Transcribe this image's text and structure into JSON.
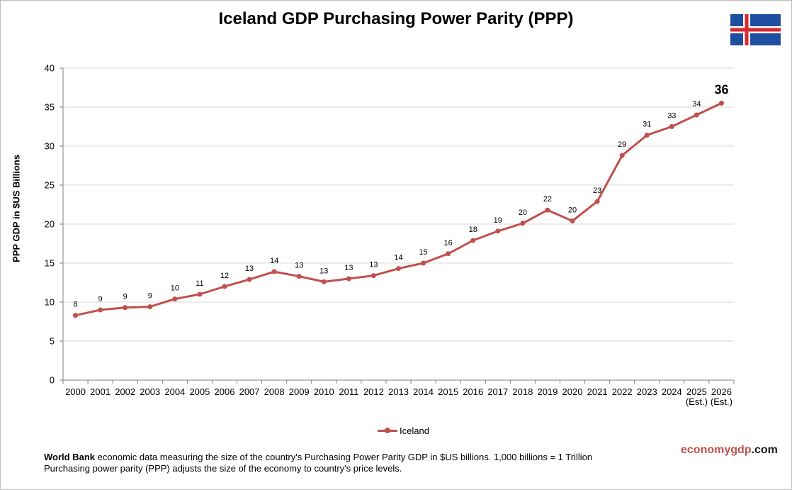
{
  "chart_data": {
    "type": "line",
    "title": "Iceland GDP Purchasing Power Parity (PPP)",
    "ylabel": "PPP GDP in $US Billions",
    "ylim": [
      0,
      40
    ],
    "yticks": [
      0,
      5,
      10,
      15,
      20,
      25,
      30,
      35,
      40
    ],
    "grid": true,
    "legend_position": "bottom",
    "categories": [
      [
        "2000"
      ],
      [
        "2001"
      ],
      [
        "2002"
      ],
      [
        "2003"
      ],
      [
        "2004"
      ],
      [
        "2005"
      ],
      [
        "2006"
      ],
      [
        "2007"
      ],
      [
        "2008"
      ],
      [
        "2009"
      ],
      [
        "2010"
      ],
      [
        "2011"
      ],
      [
        "2012"
      ],
      [
        "2013"
      ],
      [
        "2014"
      ],
      [
        "2015"
      ],
      [
        "2016"
      ],
      [
        "2017"
      ],
      [
        "2018"
      ],
      [
        "2019"
      ],
      [
        "2020"
      ],
      [
        "2021"
      ],
      [
        "2022"
      ],
      [
        "2023"
      ],
      [
        "2024"
      ],
      [
        "2025",
        "(Est.)"
      ],
      [
        "2026",
        "(Est.)"
      ]
    ],
    "series": [
      {
        "name": "Iceland",
        "color": "#c0504d",
        "values": [
          8.3,
          9.0,
          9.3,
          9.4,
          10.4,
          11.0,
          12.0,
          12.9,
          13.9,
          13.3,
          12.6,
          13.0,
          13.4,
          14.3,
          15.0,
          16.2,
          17.9,
          19.1,
          20.1,
          21.8,
          20.4,
          22.9,
          28.8,
          31.4,
          32.5,
          34.0,
          35.5
        ],
        "labels": [
          "8",
          "9",
          "9",
          "9",
          "10",
          "11",
          "12",
          "13",
          "14",
          "13",
          "13",
          "13",
          "13",
          "14",
          "15",
          "16",
          "18",
          "19",
          "20",
          "22",
          "20",
          "23",
          "29",
          "31",
          "33",
          "34",
          "36"
        ]
      }
    ]
  },
  "flag": {
    "name": "iceland-flag-icon",
    "blue": "#1e4fa0",
    "white": "#ffffff",
    "red": "#d7282f"
  },
  "footer": {
    "bold": "World Bank",
    "line1": " economic data measuring the size of the country's Purchasing Power Parity GDP in $US billions. 1,000 billions = 1 Trillion",
    "line2": "Purchasing power parity (PPP) adjusts the size of the economy to country's price levels."
  },
  "brand": {
    "part1": "economygdp",
    "part2": ".com"
  }
}
